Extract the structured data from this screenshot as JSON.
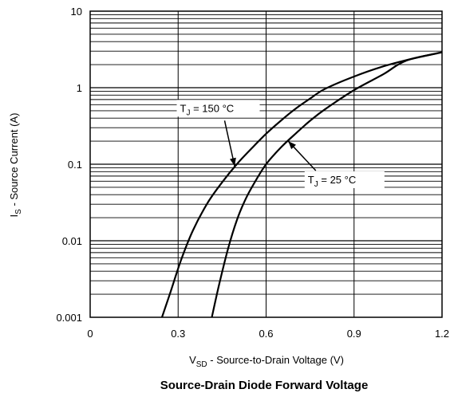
{
  "chart_data": {
    "type": "line",
    "title": "Source-Drain Diode Forward Voltage",
    "xlabel": {
      "main": "V",
      "sub": "SD",
      "rest": " - Source-to-Drain Voltage (V)"
    },
    "ylabel": {
      "main": "I",
      "sub": "S",
      "rest": " - Source Current (A)"
    },
    "xlim": [
      0,
      1.2
    ],
    "ylim": [
      0.001,
      10
    ],
    "yscale": "log",
    "grid": true,
    "x_ticks": [
      "0",
      "0.3",
      "0.6",
      "0.9",
      "1.2"
    ],
    "y_ticks": [
      "10",
      "1",
      "0.1",
      "0.01",
      "0.001"
    ],
    "series": [
      {
        "name": "TJ = 150 °C",
        "x": [
          0.245,
          0.275,
          0.31,
          0.35,
          0.4,
          0.45,
          0.5,
          0.55,
          0.6,
          0.65,
          0.7,
          0.75,
          0.8,
          0.9,
          1.0,
          1.1,
          1.2
        ],
        "y": [
          0.001,
          0.0022,
          0.0056,
          0.0135,
          0.031,
          0.058,
          0.1,
          0.16,
          0.25,
          0.37,
          0.53,
          0.72,
          0.96,
          1.4,
          1.9,
          2.4,
          2.9
        ]
      },
      {
        "name": "TJ = 25 °C",
        "x": [
          0.415,
          0.44,
          0.47,
          0.5,
          0.53,
          0.56,
          0.6,
          0.65,
          0.7,
          0.75,
          0.8,
          0.9,
          1.0,
          1.05,
          1.1,
          1.2
        ],
        "y": [
          0.001,
          0.0027,
          0.0078,
          0.0185,
          0.035,
          0.057,
          0.1,
          0.165,
          0.25,
          0.37,
          0.52,
          0.93,
          1.5,
          2.0,
          2.4,
          2.9
        ]
      }
    ],
    "annotations": [
      {
        "label_main": "T",
        "label_sub": "J",
        "label_rest": " = 150 °C",
        "series": 0,
        "x": 0.6,
        "y": 0.45
      },
      {
        "label_main": "T",
        "label_sub": "J",
        "label_rest": " = 25 °C",
        "series": 1,
        "x": 0.96,
        "y": 0.065
      }
    ]
  }
}
